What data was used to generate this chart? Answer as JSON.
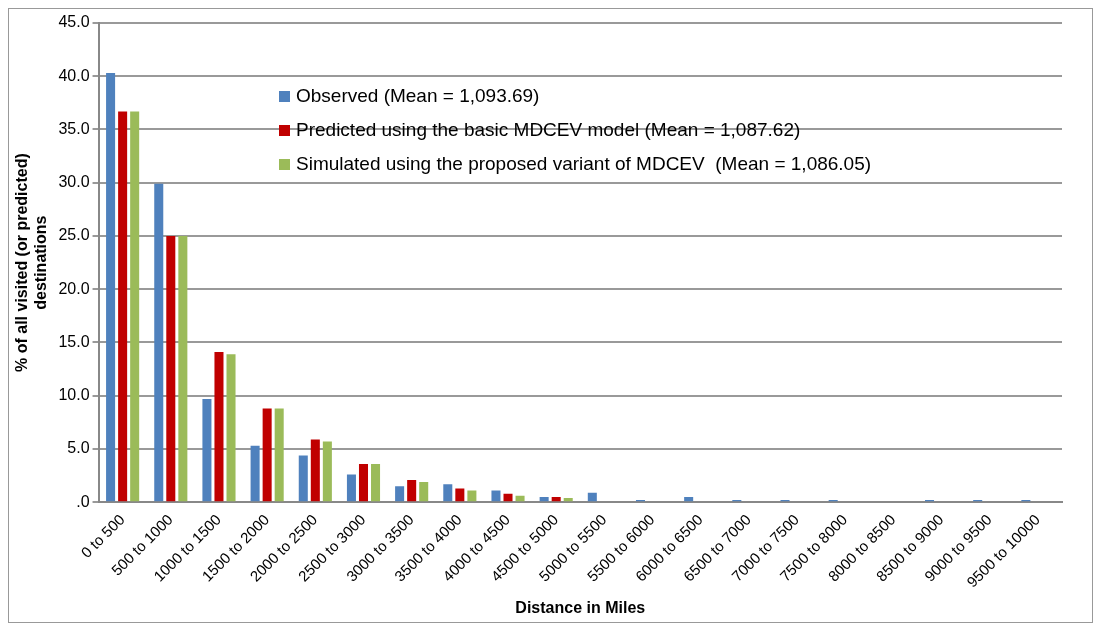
{
  "chart_data": {
    "type": "bar",
    "xlabel": "Distance in Miles",
    "ylabel": "% of all visited (or predicted) destinations",
    "categories": [
      "0 to 500",
      "500 to 1000",
      "1000 to 1500",
      "1500 to 2000",
      "2000 to 2500",
      "2500 to 3000",
      "3000 to 3500",
      "3500 to 4000",
      "4000 to 4500",
      "4500 to 5000",
      "5000 to 5500",
      "5500 to 6000",
      "6000 to 6500",
      "6500 to 7000",
      "7000 to 7500",
      "7500 to 8000",
      "8000 to 8500",
      "8500 to 9000",
      "9000 to 9500",
      "9500 to 10000"
    ],
    "series": [
      {
        "name": "Observed (Mean = 1,093.69)",
        "color": "#4f81bd",
        "values": [
          40.3,
          29.9,
          9.7,
          5.3,
          4.4,
          2.6,
          1.5,
          1.7,
          1.1,
          0.5,
          0.9,
          0.2,
          0.5,
          0.2,
          0.2,
          0.2,
          0.0,
          0.2,
          0.2,
          0.2
        ]
      },
      {
        "name": "Predicted using the basic MDCEV model (Mean = 1,087.62)",
        "color": "#c00000",
        "values": [
          36.7,
          25.0,
          14.1,
          8.8,
          5.9,
          3.6,
          2.1,
          1.3,
          0.8,
          0.5,
          0.0,
          0.0,
          0.0,
          0.0,
          0.0,
          0.0,
          0.0,
          0.0,
          0.0,
          0.0
        ]
      },
      {
        "name": "Simulated using the proposed variant of MDCEV  (Mean = 1,086.05)",
        "color": "#9bbb59",
        "values": [
          36.7,
          25.0,
          13.9,
          8.8,
          5.7,
          3.6,
          1.9,
          1.1,
          0.6,
          0.4,
          0.0,
          0.0,
          0.0,
          0.0,
          0.0,
          0.0,
          0.0,
          0.0,
          0.0,
          0.0
        ]
      }
    ],
    "ylim": [
      0,
      45
    ],
    "yticks": [
      {
        "value": 0,
        "label": ".0"
      },
      {
        "value": 5,
        "label": "5.0"
      },
      {
        "value": 10,
        "label": "10.0"
      },
      {
        "value": 15,
        "label": "15.0"
      },
      {
        "value": 20,
        "label": "20.0"
      },
      {
        "value": 25,
        "label": "25.0"
      },
      {
        "value": 30,
        "label": "30.0"
      },
      {
        "value": 35,
        "label": "35.0"
      },
      {
        "value": 40,
        "label": "40.0"
      },
      {
        "value": 45,
        "label": "45.0"
      }
    ],
    "grid": "y",
    "legend": "top"
  }
}
